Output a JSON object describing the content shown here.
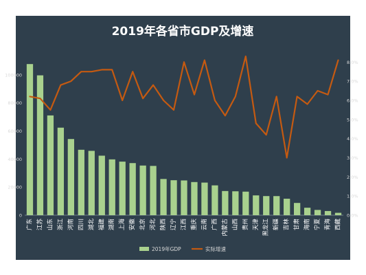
{
  "chart_data": {
    "type": "bar+line",
    "title": "2019年各省市GDP及增速",
    "categories": [
      "广东",
      "江苏",
      "山东",
      "浙江",
      "河南",
      "四川",
      "湖北",
      "福建",
      "湖南",
      "上海",
      "安徽",
      "北京",
      "河北",
      "陕西",
      "辽宁",
      "江西",
      "重庆",
      "云南",
      "广西",
      "内蒙古",
      "山西",
      "贵州",
      "天津",
      "黑龙江",
      "新疆",
      "吉林",
      "甘肃",
      "海南",
      "宁夏",
      "青海",
      "西藏"
    ],
    "series": [
      {
        "name": "2019年GDP",
        "kind": "bar",
        "axis": "left",
        "color": "#a9d18e",
        "values": [
          107671,
          99631,
          71067,
          62352,
          54259,
          46616,
          45828,
          42395,
          39752,
          38155,
          37114,
          35371,
          35105,
          25793,
          24909,
          24758,
          23606,
          23224,
          21237,
          17213,
          17027,
          16769,
          14104,
          13613,
          13597,
          11727,
          8718,
          5309,
          3748,
          2966,
          1698
        ]
      },
      {
        "name": "实际增速",
        "kind": "line",
        "axis": "right",
        "color": "#c55a11",
        "values": [
          6.2,
          6.1,
          5.5,
          6.8,
          7.0,
          7.5,
          7.5,
          7.6,
          7.6,
          6.0,
          7.5,
          6.1,
          6.8,
          6.0,
          5.5,
          8.0,
          6.3,
          8.1,
          6.0,
          5.2,
          6.2,
          8.3,
          4.8,
          4.2,
          6.2,
          3.0,
          6.2,
          5.8,
          6.5,
          6.3,
          8.1
        ]
      }
    ],
    "y_left": {
      "min": 0,
      "max": 120000,
      "ticks": [
        "0",
        "20000",
        "40000",
        "60000",
        "80000",
        "100000"
      ],
      "tick_values": [
        0,
        20000,
        40000,
        60000,
        80000,
        100000
      ]
    },
    "y_right": {
      "min": 0,
      "max": 8.8,
      "ticks": [
        "0.0%",
        "1.0%",
        "2.0%",
        "3.0%",
        "4.0%",
        "5.0%",
        "6.0%",
        "7.0%",
        "8.0%"
      ],
      "tick_values": [
        0,
        1,
        2,
        3,
        4,
        5,
        6,
        7,
        8
      ]
    },
    "legend": {
      "placement": "bottom-center",
      "items": [
        "2019年GDP",
        "实际增速"
      ]
    },
    "grid": false,
    "background": "#2f3f4c"
  }
}
